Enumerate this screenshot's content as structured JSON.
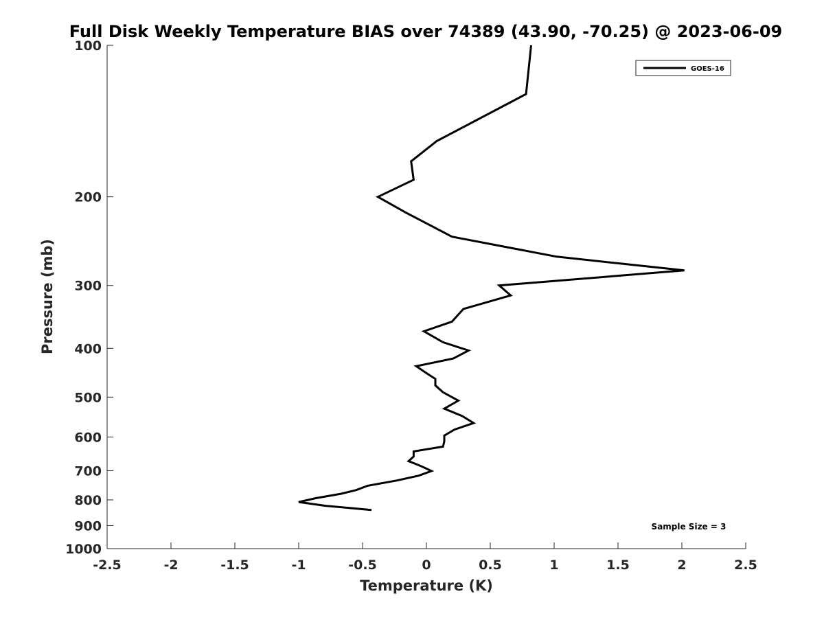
{
  "chart_data": {
    "type": "line",
    "title": "Full Disk Weekly Temperature BIAS over 74389 (43.90, -70.25) @ 2023-06-09",
    "xlabel": "Temperature (K)",
    "ylabel": "Pressure (mb)",
    "xlim": [
      -2.5,
      2.5
    ],
    "ylim": [
      100,
      1000
    ],
    "y_scale": "log",
    "y_reversed": true,
    "xticks": [
      -2.5,
      -2,
      -1.5,
      -1,
      -0.5,
      0,
      0.5,
      1,
      1.5,
      2,
      2.5
    ],
    "xtick_labels": [
      "-2.5",
      "-2",
      "-1.5",
      "-1",
      "-0.5",
      "0",
      "0.5",
      "1",
      "1.5",
      "2",
      "2.5"
    ],
    "yticks": [
      100,
      200,
      300,
      400,
      500,
      600,
      700,
      800,
      900,
      1000
    ],
    "ytick_labels": [
      "100",
      "200",
      "300",
      "400",
      "500",
      "600",
      "700",
      "800",
      "900",
      "1000"
    ],
    "grid": false,
    "legend_position": "top-right",
    "annotation": "Sample Size = 3",
    "series": [
      {
        "name": "GOES-16",
        "color": "#000000",
        "points": [
          [
            0.82,
            100
          ],
          [
            0.78,
            125
          ],
          [
            0.08,
            155
          ],
          [
            -0.12,
            170
          ],
          [
            -0.1,
            185
          ],
          [
            -0.38,
            200
          ],
          [
            -0.16,
            215
          ],
          [
            0.2,
            240
          ],
          [
            1.02,
            263
          ],
          [
            2.02,
            280
          ],
          [
            0.57,
            300
          ],
          [
            0.66,
            314
          ],
          [
            0.29,
            334
          ],
          [
            0.2,
            354
          ],
          [
            -0.02,
            370
          ],
          [
            0.13,
            389
          ],
          [
            0.33,
            404
          ],
          [
            0.21,
            419
          ],
          [
            -0.08,
            434
          ],
          [
            0.0,
            448
          ],
          [
            0.07,
            460
          ],
          [
            0.07,
            474
          ],
          [
            0.13,
            489
          ],
          [
            0.25,
            508
          ],
          [
            0.14,
            527
          ],
          [
            0.28,
            545
          ],
          [
            0.37,
            563
          ],
          [
            0.22,
            580
          ],
          [
            0.14,
            596
          ],
          [
            0.14,
            612
          ],
          [
            0.13,
            627
          ],
          [
            -0.1,
            641
          ],
          [
            -0.1,
            656
          ],
          [
            -0.14,
            670
          ],
          [
            -0.04,
            686
          ],
          [
            0.04,
            701
          ],
          [
            -0.06,
            716
          ],
          [
            -0.23,
            732
          ],
          [
            -0.46,
            750
          ],
          [
            -0.55,
            765
          ],
          [
            -0.67,
            778
          ],
          [
            -0.87,
            794
          ],
          [
            -1.0,
            808
          ],
          [
            -0.79,
            822
          ],
          [
            -0.43,
            838
          ]
        ]
      }
    ]
  }
}
